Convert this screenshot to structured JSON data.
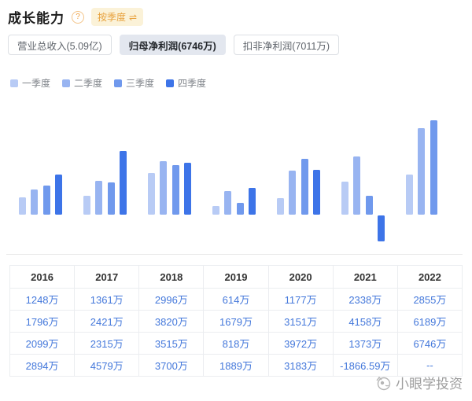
{
  "header": {
    "title": "成长能力",
    "help_glyph": "?",
    "toggle_label": "按季度",
    "toggle_icon": "⇌"
  },
  "tabs": [
    {
      "id": "total-revenue",
      "label": "营业总收入(5.09亿)",
      "selected": false
    },
    {
      "id": "net-profit",
      "label": "归母净利润(6746万)",
      "selected": true
    },
    {
      "id": "non-gaap-profit",
      "label": "扣非净利润(7011万)",
      "selected": false
    }
  ],
  "legend": [
    {
      "id": "q1",
      "label": "一季度",
      "color": "#b8cbf5"
    },
    {
      "id": "q2",
      "label": "二季度",
      "color": "#98b4f1"
    },
    {
      "id": "q3",
      "label": "三季度",
      "color": "#7099ed"
    },
    {
      "id": "q4",
      "label": "四季度",
      "color": "#3d74e8"
    }
  ],
  "chart_data": {
    "type": "bar",
    "categories": [
      "2016",
      "2017",
      "2018",
      "2019",
      "2020",
      "2021",
      "2022"
    ],
    "series": [
      {
        "name": "一季度",
        "color": "#b8cbf5",
        "values": [
          1248,
          1361,
          2996,
          614,
          1177,
          2338,
          2855
        ]
      },
      {
        "name": "二季度",
        "color": "#98b4f1",
        "values": [
          1796,
          2421,
          3820,
          1679,
          3151,
          4158,
          6189
        ]
      },
      {
        "name": "三季度",
        "color": "#7099ed",
        "values": [
          2099,
          2315,
          3515,
          818,
          3972,
          1373,
          6746
        ]
      },
      {
        "name": "四季度",
        "color": "#3d74e8",
        "values": [
          2894,
          4579,
          3700,
          1889,
          3183,
          -1866.59,
          null
        ]
      }
    ],
    "unit": "万",
    "title": "",
    "xlabel": "",
    "ylabel": "",
    "ylim": [
      -2000,
      7000
    ],
    "grid": false,
    "legend_position": "top-left",
    "axis_labels_visible": false
  },
  "table": {
    "columns": [
      "2016",
      "2017",
      "2018",
      "2019",
      "2020",
      "2021",
      "2022"
    ],
    "rows": [
      [
        "1248万",
        "1361万",
        "2996万",
        "614万",
        "1177万",
        "2338万",
        "2855万"
      ],
      [
        "1796万",
        "2421万",
        "3820万",
        "1679万",
        "3151万",
        "4158万",
        "6189万"
      ],
      [
        "2099万",
        "2315万",
        "3515万",
        "818万",
        "3972万",
        "1373万",
        "6746万"
      ],
      [
        "2894万",
        "4579万",
        "3700万",
        "1889万",
        "3183万",
        "-1866.59万",
        "--"
      ]
    ],
    "value_color": "#4478db"
  },
  "watermark": {
    "text": "小眼学投资"
  }
}
